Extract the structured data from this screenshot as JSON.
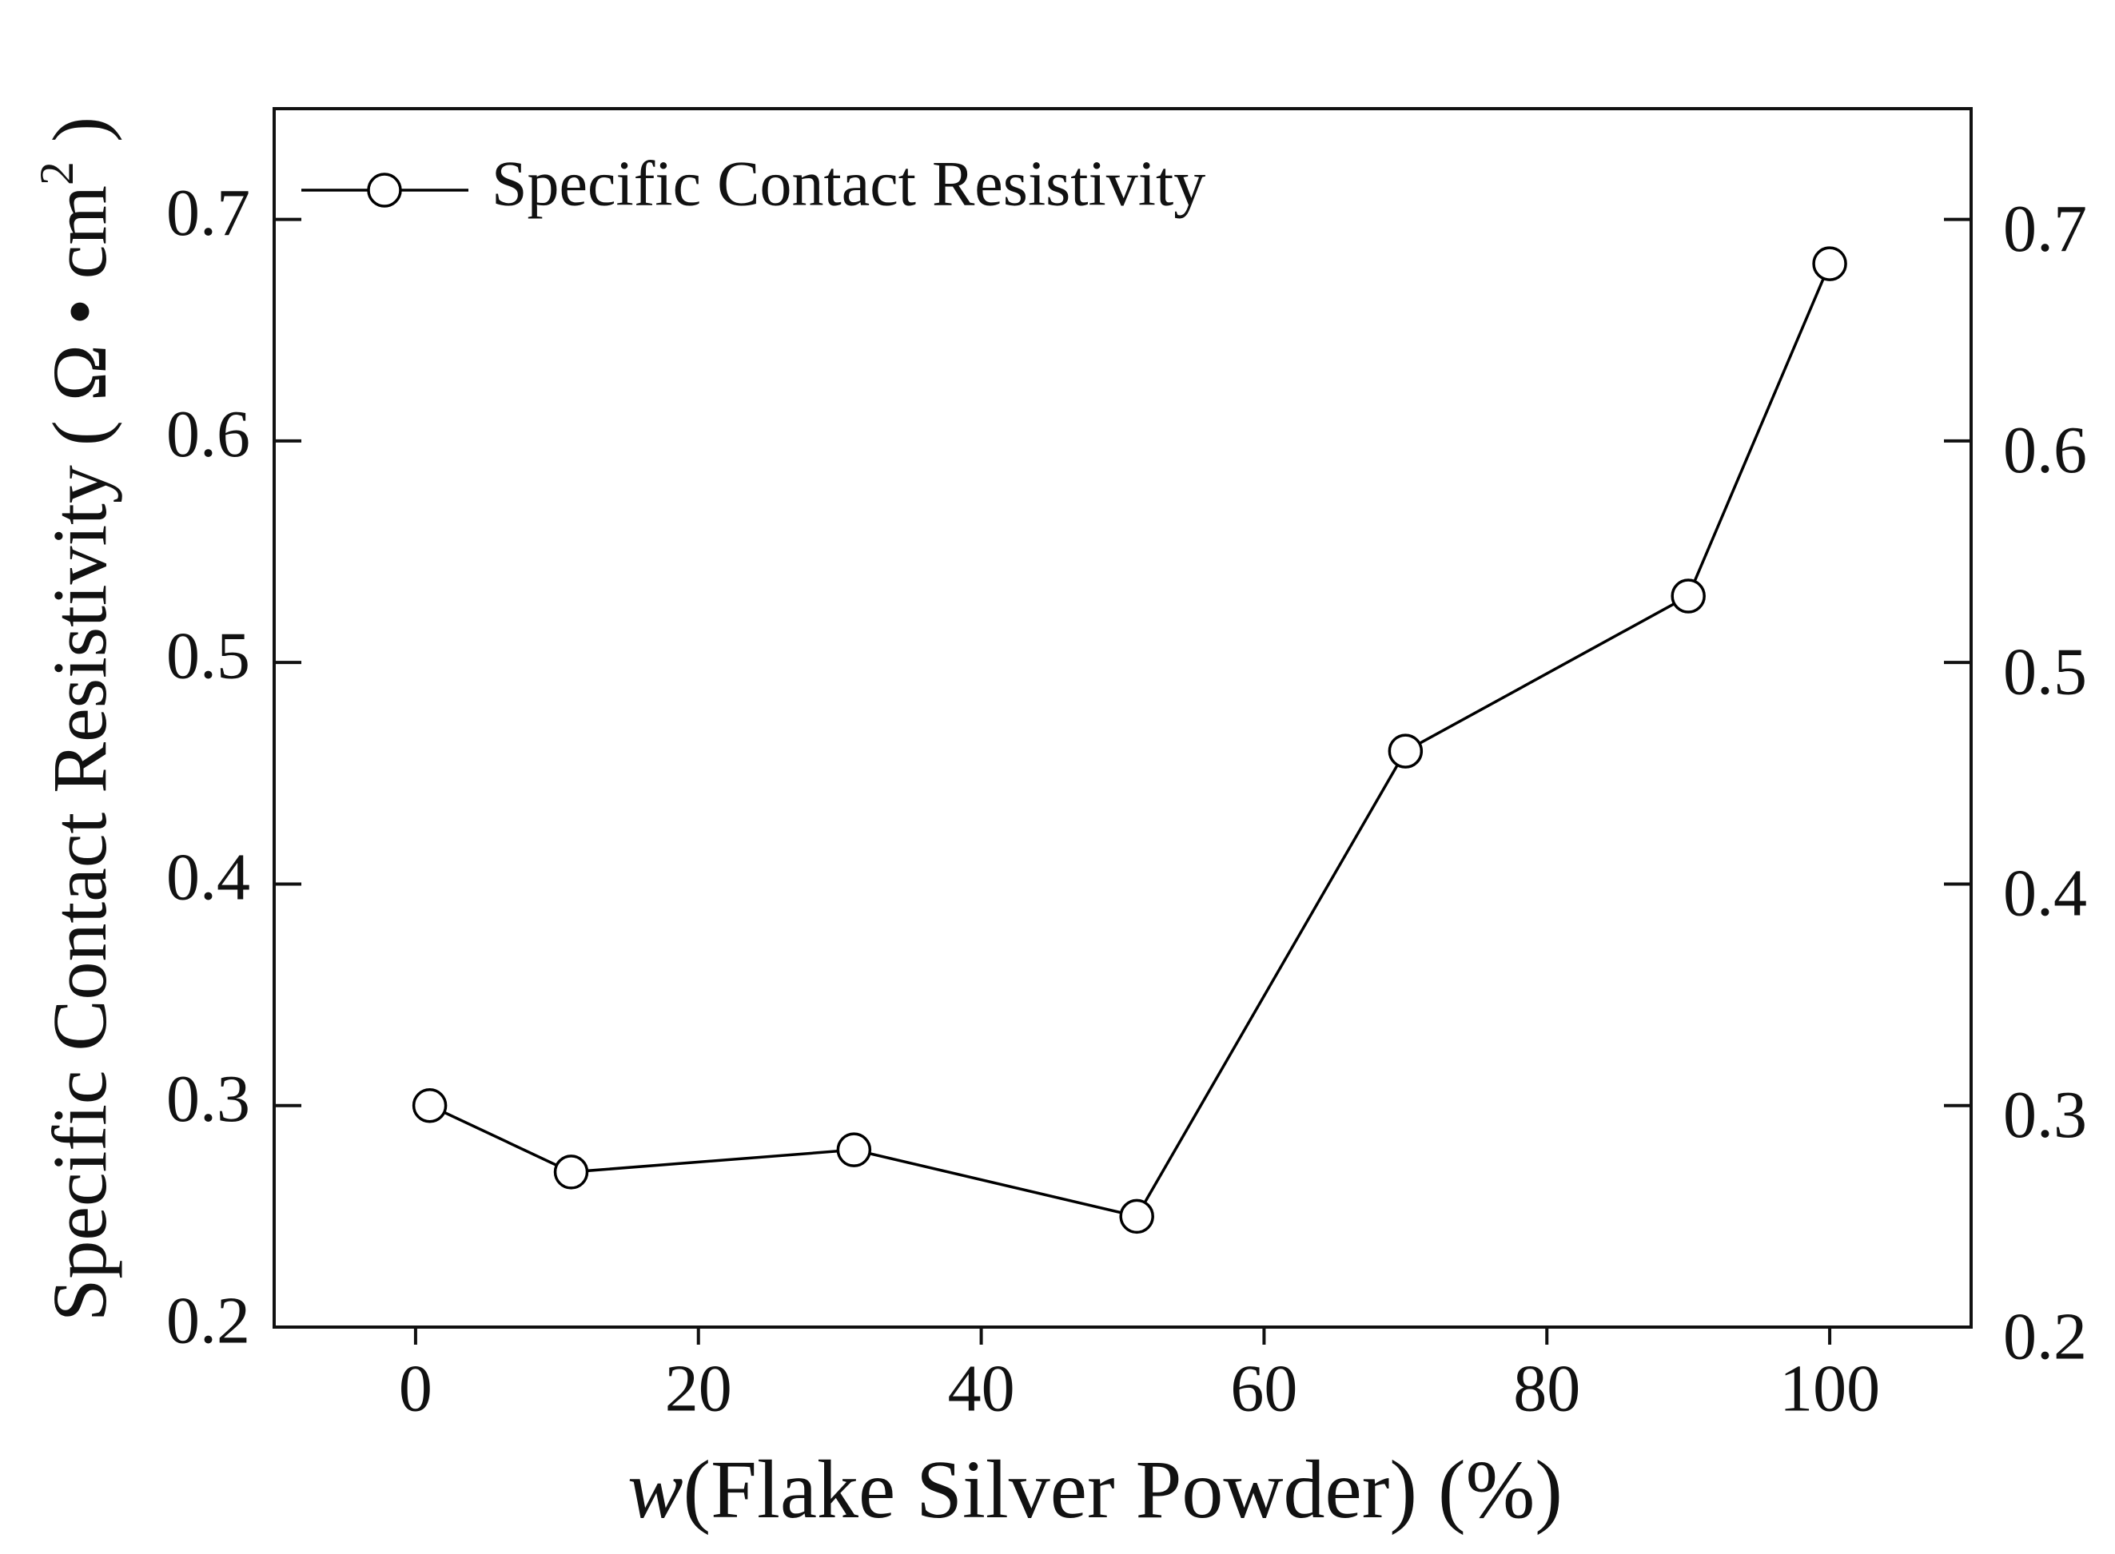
{
  "chart_data": {
    "type": "line",
    "x_label": [
      "w",
      "(Flake Silver Powder) (%)"
    ],
    "y_label": [
      "Specific Contact Resistivity ( Ω • cm",
      "2",
      " )"
    ],
    "x": [
      1,
      11,
      31,
      51,
      70,
      90,
      100
    ],
    "series": [
      {
        "name": "Specific Contact Resistivity",
        "color": "#000000",
        "values": [
          0.3,
          0.27,
          0.28,
          0.25,
          0.46,
          0.53,
          0.68
        ]
      }
    ],
    "xlim": [
      -10,
      110
    ],
    "xticks": [
      0,
      20,
      40,
      60,
      80,
      100
    ],
    "ylim": [
      0.2,
      0.75
    ],
    "yticks": [
      0.2,
      0.3,
      0.4,
      0.5,
      0.6,
      0.7
    ],
    "y2lim": [
      0.2,
      0.75
    ],
    "y2ticks": [
      0.2,
      0.3,
      0.4,
      0.5,
      0.6,
      0.7
    ],
    "legend": "top-left",
    "marker": "open-circle"
  }
}
